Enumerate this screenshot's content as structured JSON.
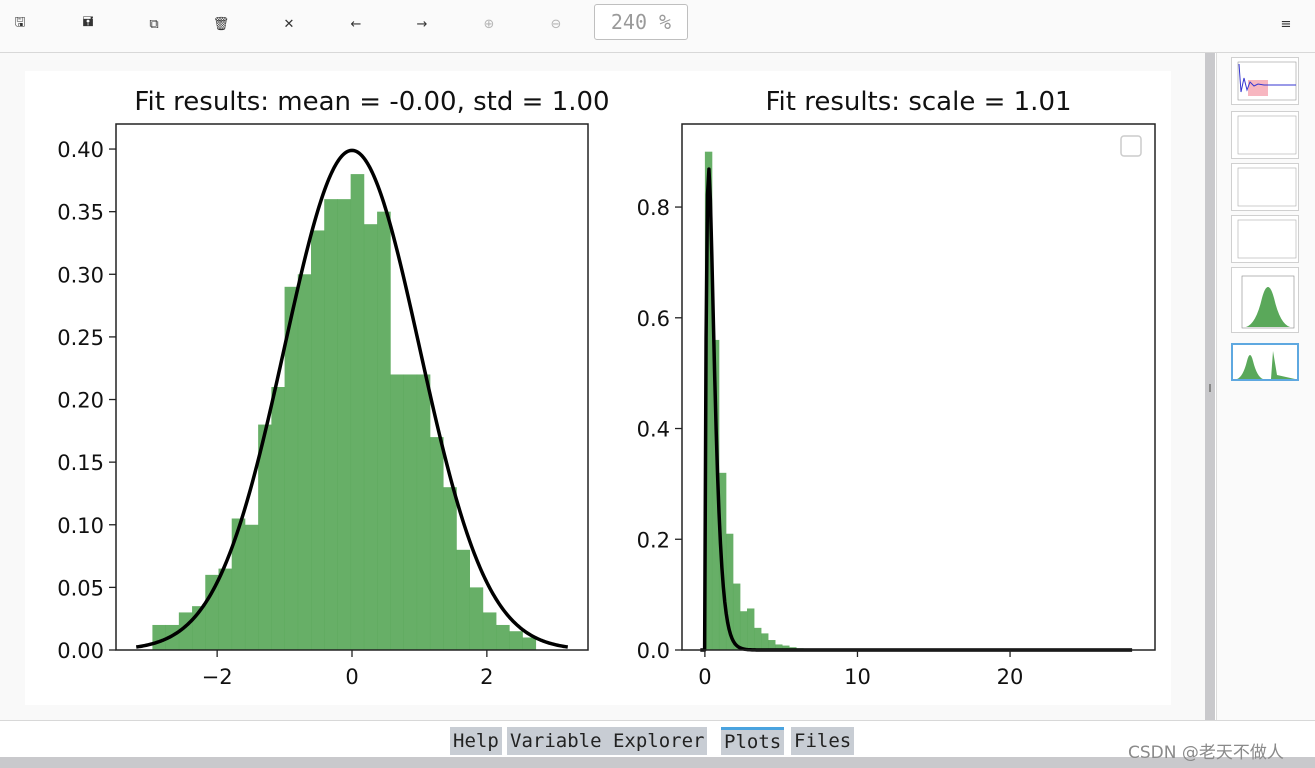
{
  "toolbar": {
    "buttons": [
      {
        "name": "save-icon",
        "glyph": "🖫",
        "enabled": true
      },
      {
        "name": "save-all-icon",
        "glyph": "🖬",
        "enabled": true
      },
      {
        "name": "copy-icon",
        "glyph": "⧉",
        "enabled": true
      },
      {
        "name": "trash-icon",
        "glyph": "🗑",
        "enabled": true
      },
      {
        "name": "close-all-icon",
        "glyph": "✕",
        "enabled": true
      },
      {
        "name": "arrow-left-icon",
        "glyph": "←",
        "enabled": true
      },
      {
        "name": "arrow-right-icon",
        "glyph": "→",
        "enabled": true
      },
      {
        "name": "zoom-in-icon",
        "glyph": "⊕",
        "enabled": false
      },
      {
        "name": "zoom-out-icon",
        "glyph": "⊖",
        "enabled": false
      }
    ],
    "zoom_value": "240 %",
    "menu_glyph": "≡"
  },
  "figure": {
    "left_chart_title": "Fit results: mean = -0.00, std = 1.00",
    "right_chart_title": "Fit results: scale = 1.01"
  },
  "chart_data": [
    {
      "type": "bar",
      "title": "Fit results: mean = -0.00, std = 1.00",
      "xlabel": "",
      "ylabel": "",
      "xlim": [
        -3.5,
        3.5
      ],
      "ylim": [
        0,
        0.42
      ],
      "xticks": [
        "−2",
        "0",
        "2"
      ],
      "xtick_values": [
        -2,
        0,
        2
      ],
      "yticks": [
        "0.00",
        "0.05",
        "0.10",
        "0.15",
        "0.20",
        "0.25",
        "0.30",
        "0.35",
        "0.40"
      ],
      "ytick_values": [
        0,
        0.05,
        0.1,
        0.15,
        0.2,
        0.25,
        0.3,
        0.35,
        0.4
      ],
      "histogram": {
        "color": "#5aa85a",
        "bin_start": -2.96,
        "bin_width": 0.196,
        "values": [
          0.02,
          0.02,
          0.03,
          0.035,
          0.06,
          0.065,
          0.105,
          0.1,
          0.18,
          0.21,
          0.29,
          0.3,
          0.335,
          0.36,
          0.36,
          0.38,
          0.34,
          0.35,
          0.22,
          0.22,
          0.22,
          0.17,
          0.13,
          0.08,
          0.05,
          0.03,
          0.02,
          0.015,
          0.01
        ]
      },
      "curve": {
        "kind": "normal_pdf",
        "mean": 0.0,
        "std": 1.0,
        "x_range": [
          -3.2,
          3.2
        ],
        "color": "#000000"
      },
      "legend": false
    },
    {
      "type": "bar",
      "title": "Fit results: scale = 1.01",
      "xlabel": "",
      "ylabel": "",
      "xlim": [
        -1.5,
        29.5
      ],
      "ylim": [
        0,
        0.95
      ],
      "xticks": [
        "0",
        "10",
        "20"
      ],
      "xtick_values": [
        0,
        10,
        20
      ],
      "yticks": [
        "0.0",
        "0.2",
        "0.4",
        "0.6",
        "0.8"
      ],
      "ytick_values": [
        0,
        0.2,
        0.4,
        0.6,
        0.8
      ],
      "histogram": {
        "color": "#5aa85a",
        "bin_start": 0.0,
        "bin_width": 0.46,
        "values": [
          0.9,
          0.56,
          0.32,
          0.21,
          0.12,
          0.07,
          0.075,
          0.04,
          0.03,
          0.018,
          0.01,
          0.008,
          0.005,
          0.003
        ]
      },
      "curve": {
        "kind": "chi2_like",
        "df": 1,
        "scale": 1.01,
        "x_range": [
          -0.3,
          28.0
        ],
        "peak": 0.87,
        "color": "#000000"
      },
      "legend": true,
      "legend_position": "top-right",
      "legend_entries": []
    }
  ],
  "thumbnails": [
    {
      "name": "thumb-1",
      "kind": "line-plot"
    },
    {
      "name": "thumb-2",
      "kind": "empty-plot"
    },
    {
      "name": "thumb-3",
      "kind": "empty-plot"
    },
    {
      "name": "thumb-4",
      "kind": "empty-plot"
    },
    {
      "name": "thumb-5",
      "kind": "histogram-plot"
    },
    {
      "name": "thumb-6",
      "kind": "two-histogram-plot",
      "selected": true
    }
  ],
  "tabs": [
    {
      "label": "Help",
      "active": false
    },
    {
      "label": "Variable Explorer",
      "active": false
    },
    {
      "label": "Plots",
      "active": true
    },
    {
      "label": "Files",
      "active": false
    }
  ],
  "watermark": "CSDN @老天不做人"
}
